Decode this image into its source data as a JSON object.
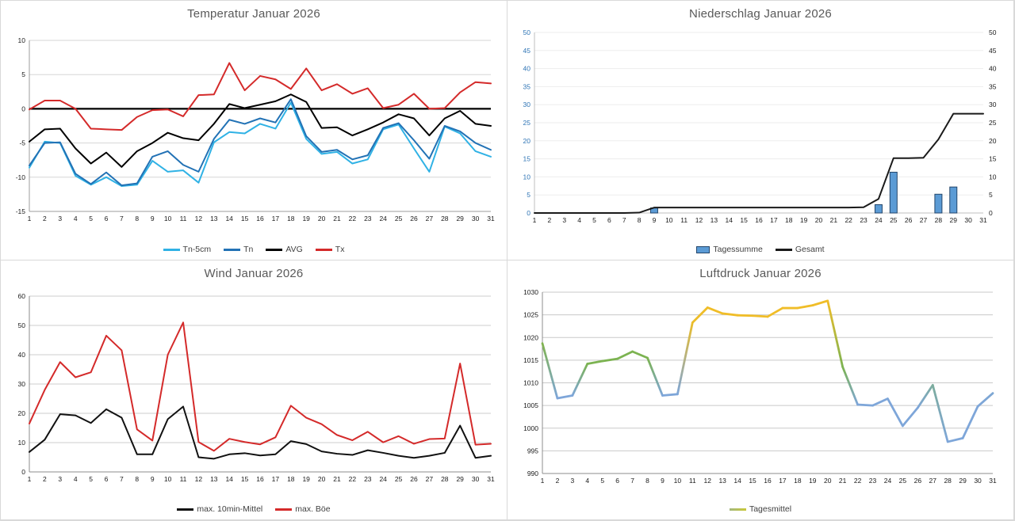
{
  "chart_data": [
    {
      "type": "line",
      "title": "Temperatur Januar 2026",
      "categories": [
        1,
        2,
        3,
        4,
        5,
        6,
        7,
        8,
        9,
        10,
        11,
        12,
        13,
        14,
        15,
        16,
        17,
        18,
        19,
        20,
        21,
        22,
        23,
        24,
        25,
        26,
        27,
        28,
        29,
        30,
        31
      ],
      "ylim": [
        -15,
        10
      ],
      "ytick_step": 5,
      "grid": true,
      "zero_line": true,
      "legend_position": "bottom",
      "series": [
        {
          "name": "Tn-5cm",
          "color": "#30B2E5",
          "values": [
            -8.6,
            -4.8,
            -5.0,
            -9.8,
            -11.1,
            -10.0,
            -11.3,
            -11.1,
            -7.6,
            -9.2,
            -9.0,
            -10.8,
            -4.9,
            -3.4,
            -3.6,
            -2.2,
            -2.9,
            0.9,
            -4.4,
            -6.6,
            -6.3,
            -8.0,
            -7.4,
            -3.0,
            -2.3,
            -5.8,
            -9.2,
            -2.6,
            -3.6,
            -6.2,
            -7.0
          ]
        },
        {
          "name": "Tn",
          "color": "#2272B5",
          "values": [
            -8.3,
            -5.0,
            -4.9,
            -9.5,
            -11.0,
            -9.3,
            -11.2,
            -10.9,
            -7.0,
            -6.2,
            -8.2,
            -9.2,
            -4.4,
            -1.6,
            -2.2,
            -1.4,
            -2.0,
            1.4,
            -4.0,
            -6.3,
            -6.0,
            -7.4,
            -6.8,
            -2.8,
            -2.1,
            -4.6,
            -7.3,
            -2.5,
            -3.3,
            -5.0,
            -6.0
          ]
        },
        {
          "name": "AVG",
          "color": "#000000",
          "values": [
            -4.8,
            -3.0,
            -2.9,
            -5.8,
            -8.0,
            -6.4,
            -8.5,
            -6.2,
            -5.0,
            -3.5,
            -4.3,
            -4.6,
            -2.2,
            0.7,
            0.1,
            0.6,
            1.1,
            2.1,
            1.0,
            -2.8,
            -2.7,
            -3.9,
            -3.0,
            -2.0,
            -0.8,
            -1.4,
            -3.9,
            -1.4,
            -0.3,
            -2.2,
            -2.5
          ]
        },
        {
          "name": "Tx",
          "color": "#D42A2A",
          "values": [
            -0.1,
            1.2,
            1.2,
            0.0,
            -2.9,
            -3.0,
            -3.1,
            -1.2,
            -0.2,
            -0.1,
            -1.1,
            2.0,
            2.1,
            6.7,
            2.7,
            4.8,
            4.3,
            2.9,
            5.9,
            2.7,
            3.6,
            2.2,
            3.0,
            0.1,
            0.6,
            2.2,
            0.0,
            0.1,
            2.4,
            3.9,
            3.7
          ]
        }
      ]
    },
    {
      "type": "combo",
      "title": "Niederschlag Januar 2026",
      "categories": [
        1,
        2,
        3,
        4,
        5,
        6,
        7,
        8,
        9,
        10,
        11,
        12,
        13,
        14,
        15,
        16,
        17,
        18,
        19,
        20,
        21,
        22,
        23,
        24,
        25,
        26,
        27,
        28,
        29,
        30,
        31
      ],
      "ylim": [
        0,
        50
      ],
      "ytick_step": 5,
      "grid": true,
      "left_axis_label_color": "#2E74B5",
      "right_axis_labels": true,
      "right_axis_label_color": "#1A1A1A",
      "legend_position": "bottom",
      "series": [
        {
          "name": "Tagessumme",
          "type": "bar",
          "color": "#5B9BD5",
          "border": "#24466B",
          "values": [
            0,
            0,
            0,
            0,
            0,
            0,
            0,
            0,
            1.4,
            0,
            0,
            0,
            0,
            0,
            0,
            0,
            0,
            0,
            0,
            0,
            0,
            0,
            0,
            2.3,
            11.3,
            0,
            0,
            5.2,
            7.2,
            0,
            0
          ]
        },
        {
          "name": "Gesamt",
          "type": "line",
          "color": "#1A1A1A",
          "values": [
            0,
            0,
            0,
            0,
            0,
            0,
            0,
            0.1,
            1.5,
            1.5,
            1.5,
            1.5,
            1.5,
            1.5,
            1.5,
            1.5,
            1.5,
            1.5,
            1.5,
            1.5,
            1.5,
            1.5,
            1.6,
            3.9,
            15.2,
            15.2,
            15.3,
            20.4,
            27.5,
            27.5,
            27.5
          ]
        }
      ]
    },
    {
      "type": "line",
      "title": "Wind Januar 2026",
      "categories": [
        1,
        2,
        3,
        4,
        5,
        6,
        7,
        8,
        9,
        10,
        11,
        12,
        13,
        14,
        15,
        16,
        17,
        18,
        19,
        20,
        21,
        22,
        23,
        24,
        25,
        26,
        27,
        28,
        29,
        30,
        31
      ],
      "ylim": [
        0,
        60
      ],
      "ytick_step": 10,
      "grid": true,
      "legend_position": "bottom",
      "series": [
        {
          "name": "max. 10min-Mittel",
          "color": "#111111",
          "values": [
            6.8,
            11.0,
            19.7,
            19.3,
            16.7,
            21.4,
            18.5,
            6.0,
            6.0,
            18.0,
            22.3,
            5.0,
            4.5,
            6.0,
            6.4,
            5.6,
            6.0,
            10.5,
            9.5,
            7.0,
            6.2,
            5.8,
            7.4,
            6.5,
            5.5,
            4.8,
            5.5,
            6.5,
            15.8,
            4.8,
            5.5
          ]
        },
        {
          "name": "max. Böe",
          "color": "#D42A2A",
          "values": [
            16.5,
            28.0,
            37.5,
            32.3,
            34.0,
            46.5,
            41.5,
            14.5,
            10.7,
            40.0,
            51.0,
            10.2,
            7.2,
            11.3,
            10.2,
            9.4,
            11.8,
            22.6,
            18.5,
            16.3,
            12.6,
            10.8,
            13.7,
            10.1,
            12.2,
            9.6,
            11.2,
            11.4,
            37.0,
            9.3,
            9.6
          ]
        }
      ]
    },
    {
      "type": "line",
      "title": "Luftdruck Januar 2026",
      "categories": [
        1,
        2,
        3,
        4,
        5,
        6,
        7,
        8,
        9,
        10,
        11,
        12,
        13,
        14,
        15,
        16,
        17,
        18,
        19,
        20,
        21,
        22,
        23,
        24,
        25,
        26,
        27,
        28,
        29,
        30,
        31
      ],
      "ylim": [
        990,
        1030
      ],
      "ytick_step": 5,
      "grid": true,
      "legend_position": "bottom",
      "series": [
        {
          "name": "Tagesmittel",
          "gradient": true,
          "color_scale": [
            {
              "value": 1007.5,
              "color": "#7EA6D9"
            },
            {
              "value": 1012.0,
              "color": "#7CB351"
            },
            {
              "value": 1018.5,
              "color": "#7CB351"
            },
            {
              "value": 1023.5,
              "color": "#F0BD28"
            }
          ],
          "legend_swatch": [
            "#A3B87E",
            "#C9C838"
          ],
          "values": [
            1018.7,
            1006.6,
            1007.2,
            1014.2,
            1014.8,
            1015.3,
            1016.9,
            1015.5,
            1007.2,
            1007.5,
            1023.3,
            1026.6,
            1025.3,
            1024.9,
            1024.8,
            1024.6,
            1026.5,
            1026.5,
            1027.1,
            1028.1,
            1013.5,
            1005.2,
            1005.0,
            1006.5,
            1000.5,
            1004.5,
            1009.5,
            997.0,
            997.8,
            1004.8,
            1007.7
          ]
        }
      ]
    }
  ]
}
